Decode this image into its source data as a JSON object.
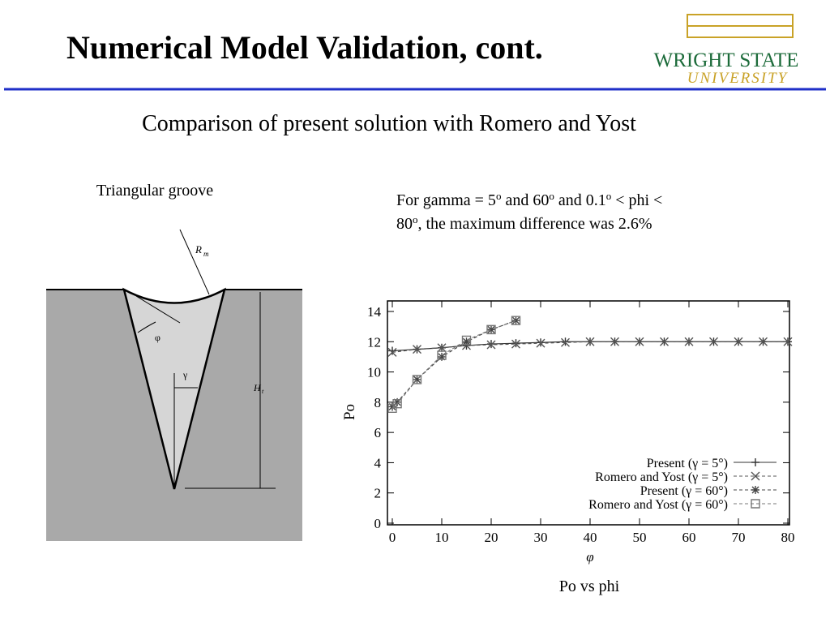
{
  "header": {
    "title": "Numerical Model Validation, cont.",
    "logo_top": "WRIGHT STATE",
    "logo_bottom": "UNIVERSITY"
  },
  "subtitle": "Comparison of present solution with Romero and Yost",
  "diagram": {
    "caption": "Triangular groove",
    "labels": [
      "R",
      "m",
      "φ",
      "γ",
      "H",
      "t"
    ]
  },
  "note": [
    "For gamma = 5",
    "o",
    " and 60",
    "o",
    " and 0.1",
    "o",
    " < phi < ",
    "80",
    "o",
    ", the maximum difference was 2.6%"
  ],
  "caption": "Po vs phi",
  "chart_data": {
    "type": "line",
    "xlabel": "φ",
    "ylabel": "Po",
    "xlim": [
      0,
      80
    ],
    "ylim": [
      0,
      14
    ],
    "xticks": [
      0,
      10,
      20,
      30,
      40,
      50,
      60,
      70,
      80
    ],
    "yticks": [
      0,
      2,
      4,
      6,
      8,
      10,
      12,
      14
    ],
    "legend": "lower right",
    "series": [
      {
        "name": "Present (γ = 5°)",
        "color": "#333333",
        "marker": "plus",
        "dash": false,
        "x": [
          0,
          5,
          10,
          15,
          20,
          25,
          30,
          35,
          40,
          45,
          50,
          55,
          60,
          65,
          70,
          75,
          80
        ],
        "values": [
          11.4,
          11.5,
          11.6,
          11.75,
          11.85,
          11.9,
          11.95,
          12.0,
          12.0,
          12.0,
          12.0,
          12.0,
          12.0,
          12.0,
          12.0,
          12.0,
          12.0
        ]
      },
      {
        "name": "Romero and Yost (γ = 5°)",
        "color": "#555555",
        "marker": "x",
        "dash": true,
        "x": [
          0,
          5,
          10,
          15,
          20,
          25,
          30,
          35,
          40,
          45,
          50,
          55,
          60,
          65,
          70,
          75,
          80
        ],
        "values": [
          11.3,
          11.5,
          11.6,
          11.75,
          11.8,
          11.85,
          11.9,
          11.95,
          12.0,
          12.0,
          12.0,
          12.0,
          12.0,
          12.0,
          12.0,
          12.0,
          12.0
        ]
      },
      {
        "name": "Present (γ = 60°)",
        "color": "#444444",
        "marker": "star",
        "dash": true,
        "x": [
          0,
          1,
          5,
          10,
          15,
          20,
          25
        ],
        "values": [
          7.7,
          8.0,
          9.5,
          11.0,
          12.0,
          12.8,
          13.4
        ]
      },
      {
        "name": "Romero and Yost (γ = 60°)",
        "color": "#777777",
        "marker": "square",
        "dash": true,
        "x": [
          0,
          1,
          5,
          10,
          15,
          20,
          25
        ],
        "values": [
          7.6,
          7.9,
          9.5,
          11.1,
          12.1,
          12.8,
          13.4
        ]
      }
    ]
  }
}
